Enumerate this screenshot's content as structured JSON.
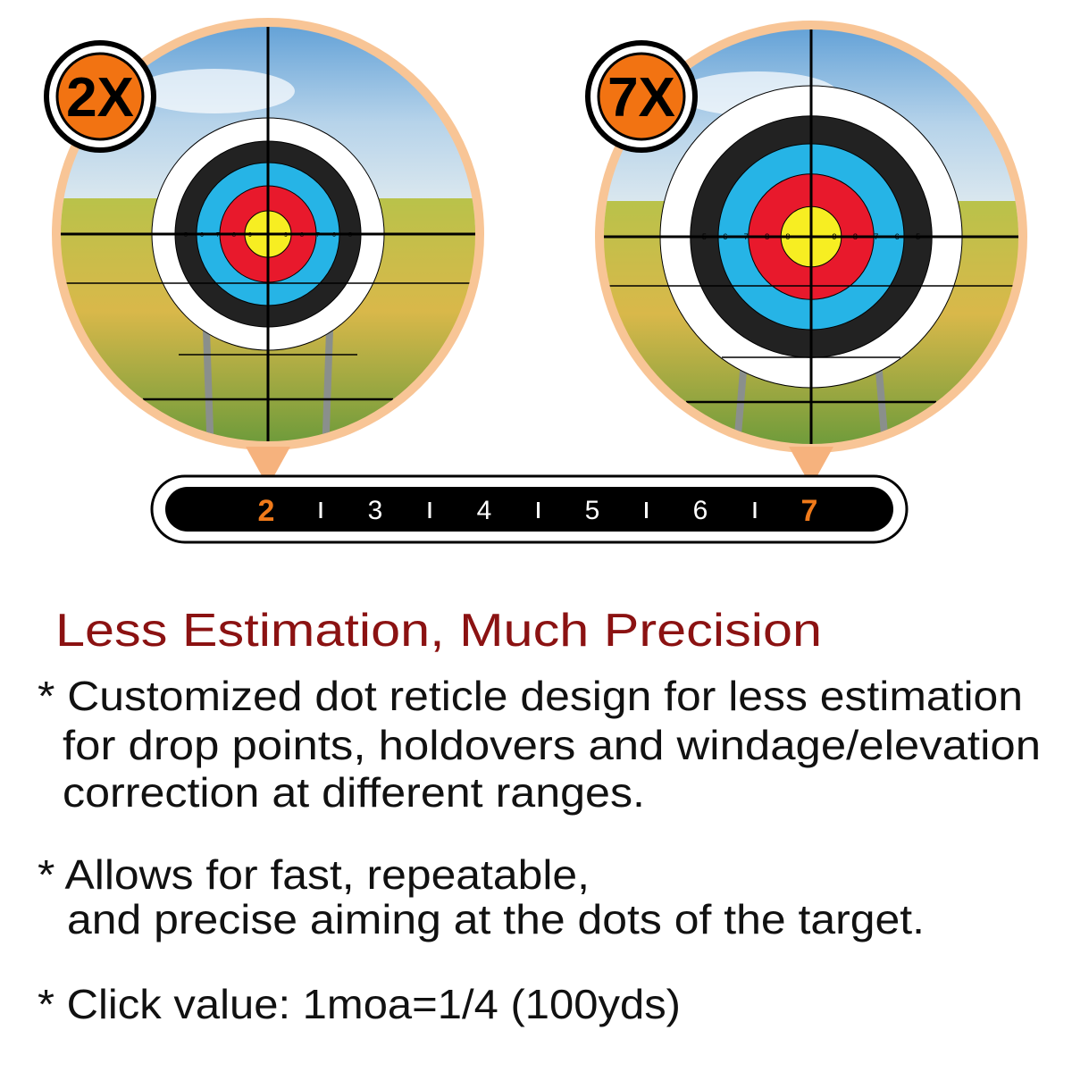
{
  "badges": {
    "left": "2X",
    "right": "7X"
  },
  "scale": {
    "labels": [
      "2",
      "3",
      "4",
      "5",
      "6",
      "7"
    ]
  },
  "target_numbers": [
    "5",
    "6",
    "7",
    "8",
    "9"
  ],
  "heading": "Less Estimation, Much Precision",
  "bullets": [
    {
      "lines": [
        "* Customized dot reticle design for less estimation",
        "for drop points, holdovers and windage/elevation",
        "correction at different ranges."
      ]
    },
    {
      "lines": [
        "* Allows for fast, repeatable,",
        "and precise aiming at the dots of the target."
      ]
    },
    {
      "lines": [
        "* Click value: 1moa=1/4 (100yds)"
      ]
    }
  ]
}
